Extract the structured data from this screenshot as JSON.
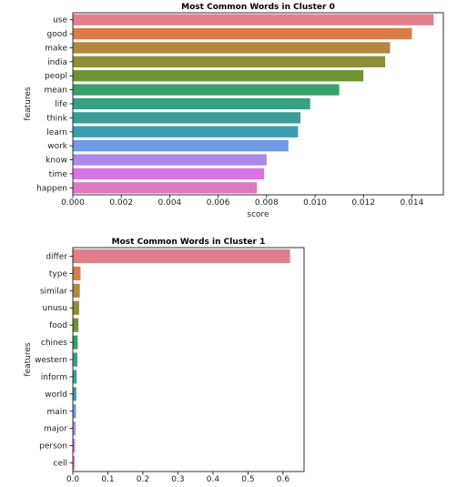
{
  "chart_data": [
    {
      "type": "bar",
      "orientation": "horizontal",
      "title": "Most Common Words in Cluster 0",
      "xlabel": "score",
      "ylabel": "features",
      "categories": [
        "use",
        "good",
        "make",
        "india",
        "peopl",
        "mean",
        "life",
        "think",
        "learn",
        "work",
        "know",
        "time",
        "happen"
      ],
      "values": [
        0.0149,
        0.014,
        0.0131,
        0.0129,
        0.012,
        0.011,
        0.0098,
        0.0094,
        0.0093,
        0.0089,
        0.008,
        0.0079,
        0.0076
      ],
      "xlim": [
        0,
        0.0153
      ],
      "xticks": [
        0.0,
        0.002,
        0.004,
        0.006,
        0.008,
        0.01,
        0.012,
        0.014
      ],
      "xtick_labels": [
        "0.000",
        "0.002",
        "0.004",
        "0.006",
        "0.008",
        "0.010",
        "0.012",
        "0.014"
      ],
      "colors": [
        "#e1808c",
        "#dc7d48",
        "#b3883e",
        "#8d8f39",
        "#6d9534",
        "#37a06b",
        "#38a085",
        "#3a9e97",
        "#3c9caf",
        "#6e9ae6",
        "#ae8ae8",
        "#d872e6",
        "#e078bd"
      ]
    },
    {
      "type": "bar",
      "orientation": "horizontal",
      "title": "Most Common Words in Cluster 1",
      "xlabel": "",
      "ylabel": "features",
      "categories": [
        "differ",
        "type",
        "similar",
        "unusu",
        "food",
        "chines",
        "western",
        "inform",
        "world",
        "main",
        "major",
        "person",
        "cell"
      ],
      "values": [
        0.62,
        0.022,
        0.02,
        0.018,
        0.016,
        0.014,
        0.013,
        0.011,
        0.01,
        0.009,
        0.008,
        0.006,
        0.005
      ],
      "xlim": [
        0,
        0.66
      ],
      "xticks": [
        0.0,
        0.1,
        0.2,
        0.3,
        0.4,
        0.5,
        0.6
      ],
      "xtick_labels": [
        "0.0",
        "0.1",
        "0.2",
        "0.3",
        "0.4",
        "0.5",
        "0.6"
      ],
      "colors": [
        "#e1808c",
        "#dc7d48",
        "#b3883e",
        "#8d8f39",
        "#6d9534",
        "#37a06b",
        "#38a085",
        "#3a9e97",
        "#3c9caf",
        "#6e9ae6",
        "#ae8ae8",
        "#d872e6",
        "#e078bd"
      ]
    }
  ]
}
